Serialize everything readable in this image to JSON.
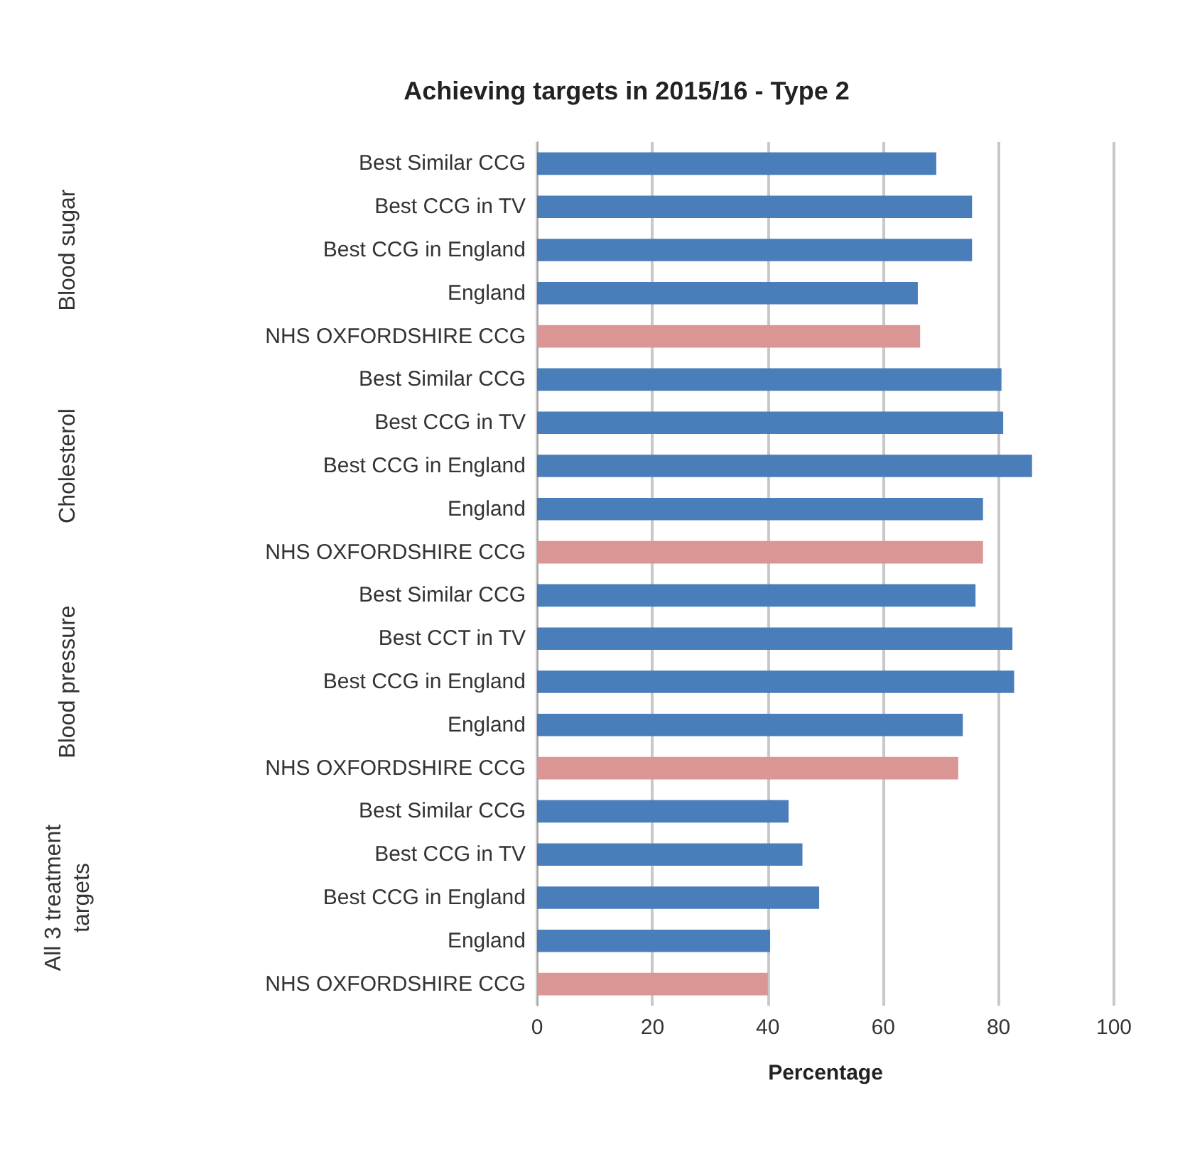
{
  "chart_data": {
    "type": "bar",
    "orientation": "horizontal",
    "title": "Achieving targets in 2015/16 - Type 2",
    "xlabel": "Percentage",
    "categories": [
      "Best Similar CCG",
      "Best CCG in TV",
      "Best CCG in England",
      "England",
      "NHS OXFORDSHIRE CCG",
      "Best Similar CCG",
      "Best CCG in TV",
      "Best CCG in England",
      "England",
      "NHS OXFORDSHIRE CCG",
      "Best Similar CCG",
      "Best CCT in TV",
      "Best CCG in England",
      "England",
      "NHS OXFORDSHIRE CCG",
      "Best Similar CCG",
      "Best CCG in TV",
      "Best CCG in England",
      "England",
      "NHS OXFORDSHIRE CCG"
    ],
    "values": [
      69.2,
      75.4,
      75.4,
      66,
      66.4,
      80.5,
      80.8,
      85.8,
      77.3,
      77.3,
      76,
      82.4,
      82.7,
      73.8,
      73,
      43.6,
      46,
      48.9,
      40.4,
      40
    ],
    "colors": [
      "#4a7ebb",
      "#4a7ebb",
      "#4a7ebb",
      "#4a7ebb",
      "#d99694",
      "#4a7ebb",
      "#4a7ebb",
      "#4a7ebb",
      "#4a7ebb",
      "#d99694",
      "#4a7ebb",
      "#4a7ebb",
      "#4a7ebb",
      "#4a7ebb",
      "#d99694",
      "#4a7ebb",
      "#4a7ebb",
      "#4a7ebb",
      "#4a7ebb",
      "#d99694"
    ],
    "annotations": [
      "Blood sugar",
      "Cholesterol",
      "Blood pressure",
      "All 3 treatment\ntargets"
    ],
    "xlim": [
      0,
      100
    ],
    "xticks": [
      0,
      20,
      40,
      60,
      80,
      100
    ],
    "grid": "x"
  }
}
